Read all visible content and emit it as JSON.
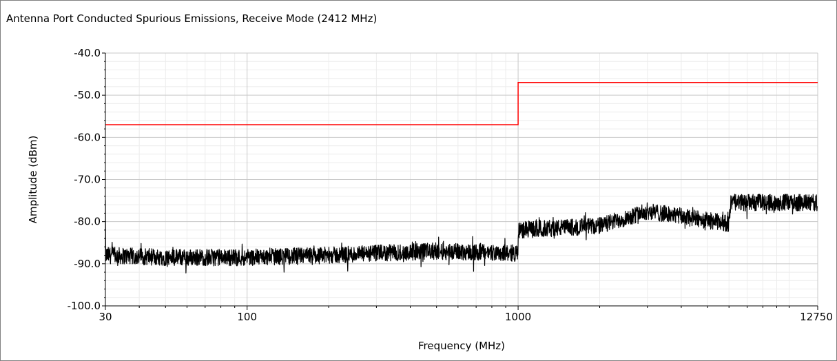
{
  "chart_data": {
    "type": "line",
    "title": "Antenna Port Conducted Spurious Emissions, Receive Mode (2412 MHz)",
    "xlabel": "Frequency (MHz)",
    "ylabel": "Amplitude (dBm)",
    "x_scale": "log",
    "xlim": [
      30,
      12750
    ],
    "ylim": [
      -100,
      -40
    ],
    "x_tick_labels": [
      "30",
      "100",
      "1000",
      "12750"
    ],
    "x_ticks": [
      30,
      100,
      1000,
      12750
    ],
    "y_ticks": [
      -40,
      -50,
      -60,
      -70,
      -80,
      -90,
      -100
    ],
    "y_tick_labels": [
      "-40.0",
      "-50.0",
      "-60.0",
      "-70.0",
      "-80.0",
      "-90.0",
      "-100.0"
    ],
    "grid": true,
    "legend": "none",
    "series": [
      {
        "color": "#ff0000",
        "kind": "limit-line",
        "x": [
          30,
          1000,
          1000,
          12750
        ],
        "y": [
          -57,
          -57,
          -47,
          -47
        ]
      },
      {
        "color": "#000000",
        "kind": "noise-trace",
        "x": [
          30,
          50,
          100,
          200,
          500,
          1000,
          1001,
          2000,
          3000,
          6000,
          6100,
          12750
        ],
        "y": [
          -88,
          -88.5,
          -88.5,
          -88,
          -87,
          -87.5,
          -82,
          -81,
          -77.5,
          -80.5,
          -75.5,
          -75.5
        ],
        "noise_range_db": 4
      }
    ]
  }
}
